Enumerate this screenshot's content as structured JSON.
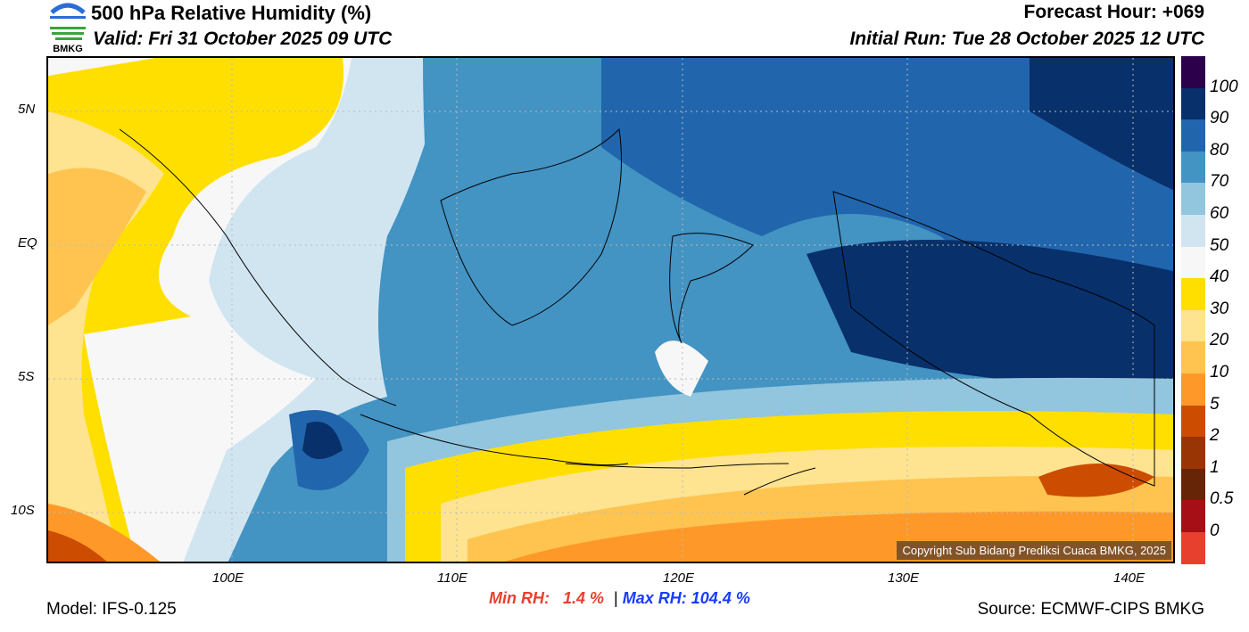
{
  "header": {
    "logo_text": "BMKG",
    "title": "500 hPa Relative Humidity (%)",
    "valid": "Valid: Fri 31 October 2025 09 UTC",
    "forecast_hour": "Forecast Hour: +069",
    "initial_run": "Initial Run: Tue 28 October 2025 12 UTC"
  },
  "axes": {
    "lat": [
      "5N",
      "EQ",
      "5S",
      "10S"
    ],
    "lon": [
      "100E",
      "110E",
      "120E",
      "130E",
      "140E"
    ]
  },
  "colorbar": {
    "labels": [
      "100",
      "90",
      "80",
      "70",
      "60",
      "50",
      "40",
      "30",
      "20",
      "10",
      "5",
      "2",
      "1",
      "0.5",
      "0"
    ],
    "colors": [
      "#2d004b",
      "#08306b",
      "#2166ac",
      "#4393c3",
      "#92c5de",
      "#d1e5f0",
      "#f7f7f7",
      "#ffdf00",
      "#fee391",
      "#fec44f",
      "#fe9929",
      "#cc4c02",
      "#993404",
      "#662506",
      "#a50f15",
      "#e8402e"
    ]
  },
  "stats": {
    "min_label": "Min RH:",
    "min_value": "1.4 %",
    "sep": "|",
    "max_label": "Max RH:",
    "max_value": "104.4 %",
    "min_color": "#e8402e",
    "max_color": "#1a3cff"
  },
  "footer": {
    "model": "Model: IFS-0.125",
    "source": "Source: ECMWF-CIPS BMKG",
    "copyright": "Copyright Sub Bidang Prediksi Cuaca BMKG, 2025"
  }
}
